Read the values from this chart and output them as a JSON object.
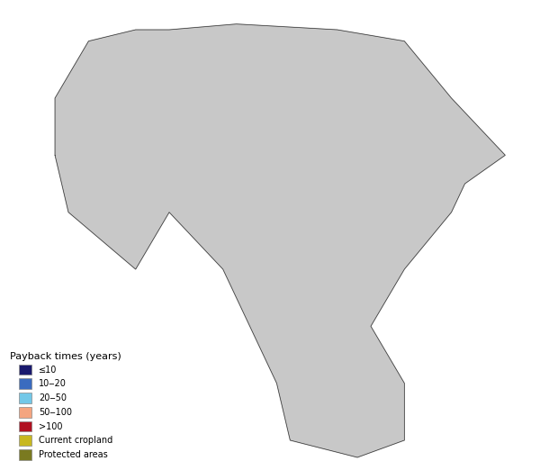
{
  "title": "",
  "background_color": "#ffffff",
  "map_background": "#d3d3d3",
  "africa_background": "#d0d8e0",
  "legend_title": "Payback times (years)",
  "legend_items": [
    {
      "label": "≤10",
      "color": "#1a1a6e"
    },
    {
      "label": "10‒20",
      "color": "#3a6bbf"
    },
    {
      "label": "20‒50",
      "color": "#72c8e8"
    },
    {
      "label": "50‒100",
      "color": "#f4a580"
    },
    {
      "label": ">100",
      "color": "#b01020"
    },
    {
      "label": "Current cropland",
      "color": "#c8b820"
    },
    {
      "label": "Protected areas",
      "color": "#7a7a20"
    }
  ],
  "colors": {
    "le10": "#1a1a6e",
    "10_20": "#3a6bbf",
    "20_50": "#72c8e8",
    "50_100": "#f4a580",
    "gt100": "#b01020",
    "cropland": "#c8b820",
    "protected": "#7a7a20",
    "land_gray": "#c8c8c8",
    "ocean": "#ffffff",
    "border": "#303030"
  },
  "figsize": [
    6.0,
    5.22
  ],
  "dpi": 100
}
